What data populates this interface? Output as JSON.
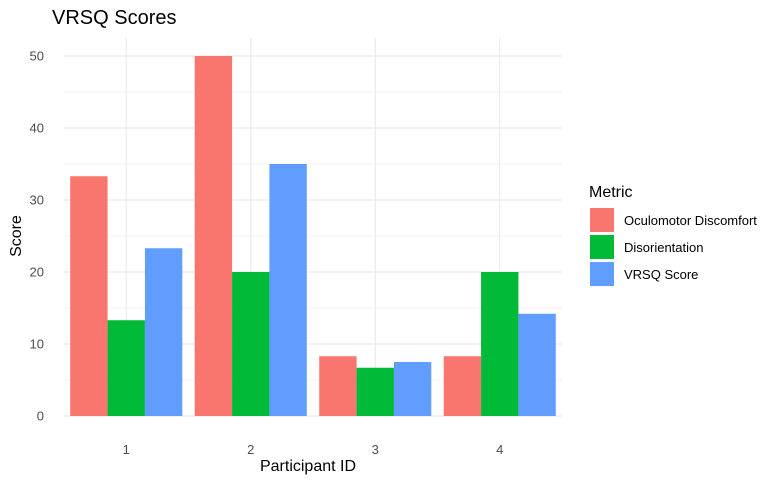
{
  "chart_data": {
    "type": "bar",
    "title": "VRSQ Scores",
    "xlabel": "Participant ID",
    "ylabel": "Score",
    "categories": [
      "1",
      "2",
      "3",
      "4"
    ],
    "ylim": [
      0,
      52.5
    ],
    "yticks": [
      0,
      10,
      20,
      30,
      40,
      50
    ],
    "grid": true,
    "legend": {
      "title": "Metric",
      "position": "right"
    },
    "series": [
      {
        "name": "Oculomotor Discomfort",
        "color": "#F8766D",
        "values": [
          33.3,
          50,
          8.3,
          8.3
        ]
      },
      {
        "name": "Disorientation",
        "color": "#00BA38",
        "values": [
          13.3,
          20,
          6.7,
          20
        ]
      },
      {
        "name": "VRSQ Score",
        "color": "#619CFF",
        "values": [
          23.3,
          35,
          7.5,
          14.2
        ]
      }
    ]
  }
}
